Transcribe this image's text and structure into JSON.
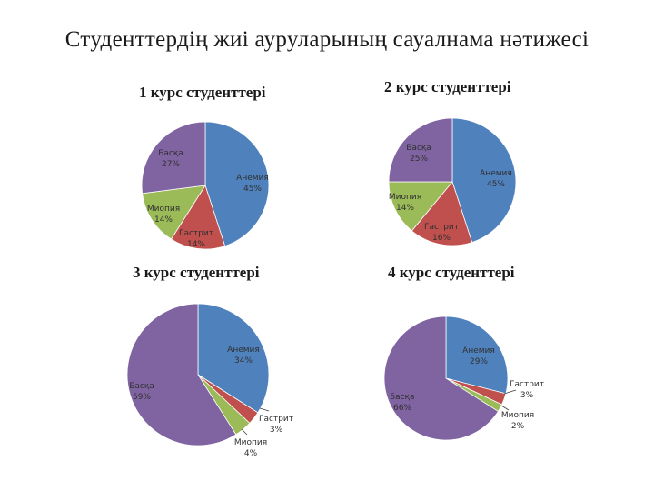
{
  "page_title": "Студенттердің  жиі ауруларының сауалнама нәтижесі",
  "colors": {
    "Анемия": "#4F81BD",
    "Гастрит": "#C0504D",
    "Миопия": "#9BBB59",
    "Басқа": "#8064A2"
  },
  "chart_data": [
    {
      "type": "pie",
      "title": "1 курс студенттері",
      "slices": [
        {
          "category": "Анемия",
          "label": "Анемия",
          "value": 45,
          "value_label": "45%"
        },
        {
          "category": "Гастрит",
          "label": "Гастрит",
          "value": 14,
          "value_label": "14%"
        },
        {
          "category": "Миопия",
          "label": "Миопия",
          "value": 14,
          "value_label": "14%"
        },
        {
          "category": "Басқа",
          "label": "Басқа",
          "value": 27,
          "value_label": "27%"
        }
      ]
    },
    {
      "type": "pie",
      "title": "2 курс студенттері",
      "slices": [
        {
          "category": "Анемия",
          "label": "Анемия",
          "value": 45,
          "value_label": "45%"
        },
        {
          "category": "Гастрит",
          "label": "Гастрит",
          "value": 16,
          "value_label": "16%"
        },
        {
          "category": "Миопия",
          "label": "Миопия",
          "value": 14,
          "value_label": "14%"
        },
        {
          "category": "Басқа",
          "label": "Басқа",
          "value": 25,
          "value_label": "25%"
        }
      ]
    },
    {
      "type": "pie",
      "title": "3 курс студенттері",
      "slices": [
        {
          "category": "Анемия",
          "label": "Анемия",
          "value": 34,
          "value_label": "34%"
        },
        {
          "category": "Гастрит",
          "label": "Гастрит",
          "value": 3,
          "value_label": "3%"
        },
        {
          "category": "Миопия",
          "label": "Миопия",
          "value": 4,
          "value_label": "4%"
        },
        {
          "category": "Басқа",
          "label": "Басқа",
          "value": 59,
          "value_label": "59%"
        }
      ]
    },
    {
      "type": "pie",
      "title": "4 курс студенттері",
      "slices": [
        {
          "category": "Анемия",
          "label": "Анемия",
          "value": 29,
          "value_label": "29%"
        },
        {
          "category": "Гастрит",
          "label": "Гастрит",
          "value": 3,
          "value_label": "3%"
        },
        {
          "category": "Миопия",
          "label": "Миопия",
          "value": 2,
          "value_label": "2%"
        },
        {
          "category": "Басқа",
          "label": "басқа",
          "value": 66,
          "value_label": "66%"
        }
      ]
    }
  ]
}
